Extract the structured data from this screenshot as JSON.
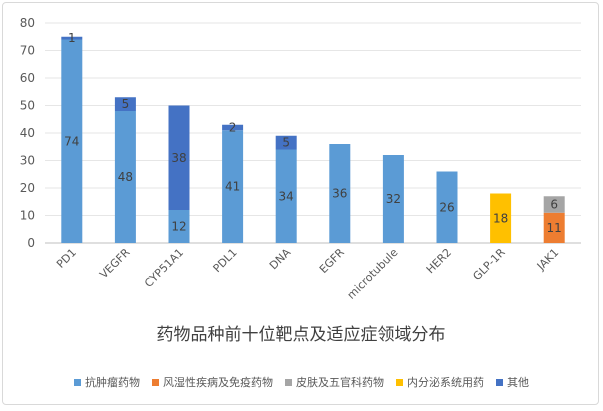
{
  "chart_data": {
    "type": "bar",
    "stacked": true,
    "title": "药物品种前十位靶点及适应症领域分布",
    "categories": [
      "PD1",
      "VEGFR",
      "CYP51A1",
      "PDL1",
      "DNA",
      "EGFR",
      "microtubule",
      "HER2",
      "GLP-1R",
      "JAK1"
    ],
    "ylim": [
      0,
      80
    ],
    "yticks": [
      0,
      10,
      20,
      30,
      40,
      50,
      60,
      70,
      80
    ],
    "grid": true,
    "legend_position": "bottom",
    "series": [
      {
        "name": "抗肿瘤药物",
        "color": "#5b9bd5",
        "values": [
          74,
          48,
          12,
          41,
          34,
          36,
          32,
          26,
          0,
          0
        ]
      },
      {
        "name": "风湿性疾病及免疫药物",
        "color": "#ed7d31",
        "values": [
          0,
          0,
          0,
          0,
          0,
          0,
          0,
          0,
          0,
          11
        ]
      },
      {
        "name": "皮肤及五官科药物",
        "color": "#a5a5a5",
        "values": [
          0,
          0,
          0,
          0,
          0,
          0,
          0,
          0,
          0,
          6
        ]
      },
      {
        "name": "内分泌系统用药",
        "color": "#ffc000",
        "values": [
          0,
          0,
          0,
          0,
          0,
          0,
          0,
          0,
          18,
          0
        ]
      },
      {
        "name": "其他",
        "color": "#4472c4",
        "values": [
          1,
          5,
          38,
          2,
          5,
          0,
          0,
          0,
          0,
          0
        ]
      }
    ]
  }
}
